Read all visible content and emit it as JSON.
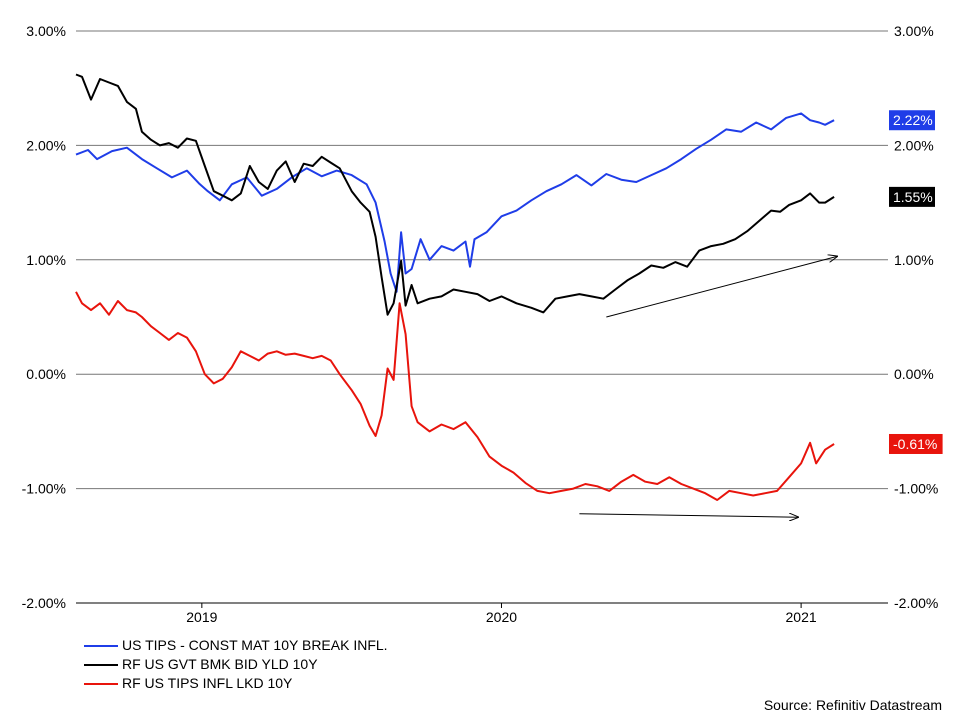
{
  "chart_data": {
    "type": "line",
    "source": "Source: Refinitiv Datastream",
    "y_ticks": [
      "3.00%",
      "2.00%",
      "1.00%",
      "0.00%",
      "-1.00%",
      "-2.00%"
    ],
    "y_tick_values": [
      3,
      2,
      1,
      0,
      -1,
      -2
    ],
    "ylim": [
      -2,
      3
    ],
    "x_ticks": [
      "2019",
      "2020",
      "2021"
    ],
    "x_tick_values": [
      2019.0,
      2020.0,
      2021.0
    ],
    "xlim": [
      2018.58,
      2021.29
    ],
    "grid": "horizontal",
    "legend_position": "bottom-left",
    "series": [
      {
        "name": "US TIPS - CONST MAT 10Y BREAK INFL.",
        "color": "#1f3de8",
        "last_label": "2.22%",
        "points": [
          [
            2018.58,
            1.92
          ],
          [
            2018.62,
            1.96
          ],
          [
            2018.65,
            1.88
          ],
          [
            2018.7,
            1.95
          ],
          [
            2018.75,
            1.98
          ],
          [
            2018.8,
            1.88
          ],
          [
            2018.85,
            1.8
          ],
          [
            2018.9,
            1.72
          ],
          [
            2018.95,
            1.78
          ],
          [
            2018.99,
            1.67
          ],
          [
            2019.02,
            1.6
          ],
          [
            2019.06,
            1.52
          ],
          [
            2019.1,
            1.66
          ],
          [
            2019.15,
            1.72
          ],
          [
            2019.2,
            1.56
          ],
          [
            2019.25,
            1.62
          ],
          [
            2019.3,
            1.72
          ],
          [
            2019.35,
            1.8
          ],
          [
            2019.4,
            1.73
          ],
          [
            2019.45,
            1.78
          ],
          [
            2019.5,
            1.74
          ],
          [
            2019.55,
            1.66
          ],
          [
            2019.58,
            1.5
          ],
          [
            2019.61,
            1.16
          ],
          [
            2019.63,
            0.88
          ],
          [
            2019.65,
            0.72
          ],
          [
            2019.665,
            1.24
          ],
          [
            2019.68,
            0.88
          ],
          [
            2019.7,
            0.92
          ],
          [
            2019.73,
            1.18
          ],
          [
            2019.76,
            1.0
          ],
          [
            2019.8,
            1.12
          ],
          [
            2019.84,
            1.08
          ],
          [
            2019.88,
            1.16
          ],
          [
            2019.895,
            0.94
          ],
          [
            2019.91,
            1.18
          ],
          [
            2019.95,
            1.24
          ],
          [
            2020.0,
            1.38
          ],
          [
            2020.05,
            1.43
          ],
          [
            2020.1,
            1.52
          ],
          [
            2020.15,
            1.6
          ],
          [
            2020.2,
            1.66
          ],
          [
            2020.25,
            1.74
          ],
          [
            2020.3,
            1.65
          ],
          [
            2020.35,
            1.75
          ],
          [
            2020.4,
            1.7
          ],
          [
            2020.45,
            1.68
          ],
          [
            2020.5,
            1.74
          ],
          [
            2020.55,
            1.8
          ],
          [
            2020.6,
            1.88
          ],
          [
            2020.65,
            1.97
          ],
          [
            2020.7,
            2.05
          ],
          [
            2020.75,
            2.14
          ],
          [
            2020.8,
            2.12
          ],
          [
            2020.85,
            2.2
          ],
          [
            2020.9,
            2.14
          ],
          [
            2020.95,
            2.24
          ],
          [
            2021.0,
            2.28
          ],
          [
            2021.03,
            2.22
          ],
          [
            2021.06,
            2.2
          ],
          [
            2021.08,
            2.18
          ],
          [
            2021.11,
            2.22
          ]
        ]
      },
      {
        "name": "RF US GVT BMK BID YLD 10Y",
        "color": "#000000",
        "last_label": "1.55%",
        "points": [
          [
            2018.58,
            2.62
          ],
          [
            2018.6,
            2.6
          ],
          [
            2018.63,
            2.4
          ],
          [
            2018.66,
            2.58
          ],
          [
            2018.69,
            2.55
          ],
          [
            2018.72,
            2.52
          ],
          [
            2018.75,
            2.38
          ],
          [
            2018.78,
            2.32
          ],
          [
            2018.8,
            2.12
          ],
          [
            2018.83,
            2.05
          ],
          [
            2018.86,
            2.0
          ],
          [
            2018.89,
            2.02
          ],
          [
            2018.92,
            1.98
          ],
          [
            2018.95,
            2.06
          ],
          [
            2018.98,
            2.04
          ],
          [
            2019.01,
            1.82
          ],
          [
            2019.04,
            1.6
          ],
          [
            2019.07,
            1.56
          ],
          [
            2019.1,
            1.52
          ],
          [
            2019.13,
            1.58
          ],
          [
            2019.16,
            1.82
          ],
          [
            2019.19,
            1.68
          ],
          [
            2019.22,
            1.62
          ],
          [
            2019.25,
            1.78
          ],
          [
            2019.28,
            1.86
          ],
          [
            2019.31,
            1.68
          ],
          [
            2019.34,
            1.84
          ],
          [
            2019.37,
            1.82
          ],
          [
            2019.4,
            1.9
          ],
          [
            2019.43,
            1.85
          ],
          [
            2019.46,
            1.8
          ],
          [
            2019.5,
            1.6
          ],
          [
            2019.53,
            1.5
          ],
          [
            2019.56,
            1.42
          ],
          [
            2019.58,
            1.2
          ],
          [
            2019.6,
            0.85
          ],
          [
            2019.62,
            0.52
          ],
          [
            2019.64,
            0.62
          ],
          [
            2019.665,
            0.99
          ],
          [
            2019.68,
            0.6
          ],
          [
            2019.7,
            0.78
          ],
          [
            2019.72,
            0.62
          ],
          [
            2019.76,
            0.66
          ],
          [
            2019.8,
            0.68
          ],
          [
            2019.84,
            0.74
          ],
          [
            2019.88,
            0.72
          ],
          [
            2019.92,
            0.7
          ],
          [
            2019.96,
            0.64
          ],
          [
            2020.0,
            0.68
          ],
          [
            2020.05,
            0.62
          ],
          [
            2020.1,
            0.58
          ],
          [
            2020.14,
            0.54
          ],
          [
            2020.18,
            0.66
          ],
          [
            2020.22,
            0.68
          ],
          [
            2020.26,
            0.7
          ],
          [
            2020.3,
            0.68
          ],
          [
            2020.34,
            0.66
          ],
          [
            2020.38,
            0.74
          ],
          [
            2020.42,
            0.82
          ],
          [
            2020.46,
            0.88
          ],
          [
            2020.5,
            0.95
          ],
          [
            2020.54,
            0.93
          ],
          [
            2020.58,
            0.98
          ],
          [
            2020.62,
            0.94
          ],
          [
            2020.66,
            1.08
          ],
          [
            2020.7,
            1.12
          ],
          [
            2020.74,
            1.14
          ],
          [
            2020.78,
            1.18
          ],
          [
            2020.82,
            1.25
          ],
          [
            2020.86,
            1.34
          ],
          [
            2020.9,
            1.43
          ],
          [
            2020.93,
            1.42
          ],
          [
            2020.96,
            1.48
          ],
          [
            2021.0,
            1.52
          ],
          [
            2021.03,
            1.58
          ],
          [
            2021.06,
            1.5
          ],
          [
            2021.08,
            1.5
          ],
          [
            2021.11,
            1.55
          ]
        ]
      },
      {
        "name": "RF US TIPS INFL LKD 10Y",
        "color": "#e8140c",
        "last_label": "-0.61%",
        "points": [
          [
            2018.58,
            0.72
          ],
          [
            2018.6,
            0.62
          ],
          [
            2018.63,
            0.56
          ],
          [
            2018.66,
            0.62
          ],
          [
            2018.69,
            0.52
          ],
          [
            2018.72,
            0.64
          ],
          [
            2018.75,
            0.56
          ],
          [
            2018.78,
            0.54
          ],
          [
            2018.8,
            0.5
          ],
          [
            2018.83,
            0.42
          ],
          [
            2018.86,
            0.36
          ],
          [
            2018.89,
            0.3
          ],
          [
            2018.92,
            0.36
          ],
          [
            2018.95,
            0.32
          ],
          [
            2018.98,
            0.2
          ],
          [
            2019.01,
            0.0
          ],
          [
            2019.04,
            -0.08
          ],
          [
            2019.07,
            -0.04
          ],
          [
            2019.1,
            0.06
          ],
          [
            2019.13,
            0.2
          ],
          [
            2019.16,
            0.16
          ],
          [
            2019.19,
            0.12
          ],
          [
            2019.22,
            0.18
          ],
          [
            2019.25,
            0.2
          ],
          [
            2019.28,
            0.17
          ],
          [
            2019.31,
            0.18
          ],
          [
            2019.34,
            0.16
          ],
          [
            2019.37,
            0.14
          ],
          [
            2019.4,
            0.16
          ],
          [
            2019.43,
            0.12
          ],
          [
            2019.46,
            0.0
          ],
          [
            2019.5,
            -0.14
          ],
          [
            2019.53,
            -0.26
          ],
          [
            2019.56,
            -0.45
          ],
          [
            2019.58,
            -0.54
          ],
          [
            2019.6,
            -0.36
          ],
          [
            2019.62,
            0.05
          ],
          [
            2019.64,
            -0.05
          ],
          [
            2019.66,
            0.62
          ],
          [
            2019.68,
            0.35
          ],
          [
            2019.7,
            -0.28
          ],
          [
            2019.72,
            -0.42
          ],
          [
            2019.76,
            -0.5
          ],
          [
            2019.8,
            -0.44
          ],
          [
            2019.84,
            -0.48
          ],
          [
            2019.88,
            -0.42
          ],
          [
            2019.92,
            -0.55
          ],
          [
            2019.96,
            -0.72
          ],
          [
            2020.0,
            -0.8
          ],
          [
            2020.04,
            -0.86
          ],
          [
            2020.08,
            -0.95
          ],
          [
            2020.12,
            -1.02
          ],
          [
            2020.16,
            -1.04
          ],
          [
            2020.2,
            -1.02
          ],
          [
            2020.24,
            -1.0
          ],
          [
            2020.28,
            -0.96
          ],
          [
            2020.32,
            -0.98
          ],
          [
            2020.36,
            -1.02
          ],
          [
            2020.4,
            -0.94
          ],
          [
            2020.44,
            -0.88
          ],
          [
            2020.48,
            -0.94
          ],
          [
            2020.52,
            -0.96
          ],
          [
            2020.56,
            -0.9
          ],
          [
            2020.6,
            -0.96
          ],
          [
            2020.64,
            -1.0
          ],
          [
            2020.68,
            -1.04
          ],
          [
            2020.72,
            -1.1
          ],
          [
            2020.76,
            -1.02
          ],
          [
            2020.8,
            -1.04
          ],
          [
            2020.84,
            -1.06
          ],
          [
            2020.88,
            -1.04
          ],
          [
            2020.92,
            -1.02
          ],
          [
            2020.96,
            -0.9
          ],
          [
            2021.0,
            -0.78
          ],
          [
            2021.03,
            -0.6
          ],
          [
            2021.05,
            -0.78
          ],
          [
            2021.08,
            -0.66
          ],
          [
            2021.11,
            -0.61
          ]
        ]
      }
    ],
    "annotations": [
      {
        "type": "arrow",
        "from": [
          2020.35,
          0.5
        ],
        "to": [
          2021.12,
          1.03
        ]
      },
      {
        "type": "arrow",
        "from": [
          2020.26,
          -1.22
        ],
        "to": [
          2020.99,
          -1.25
        ]
      }
    ]
  }
}
